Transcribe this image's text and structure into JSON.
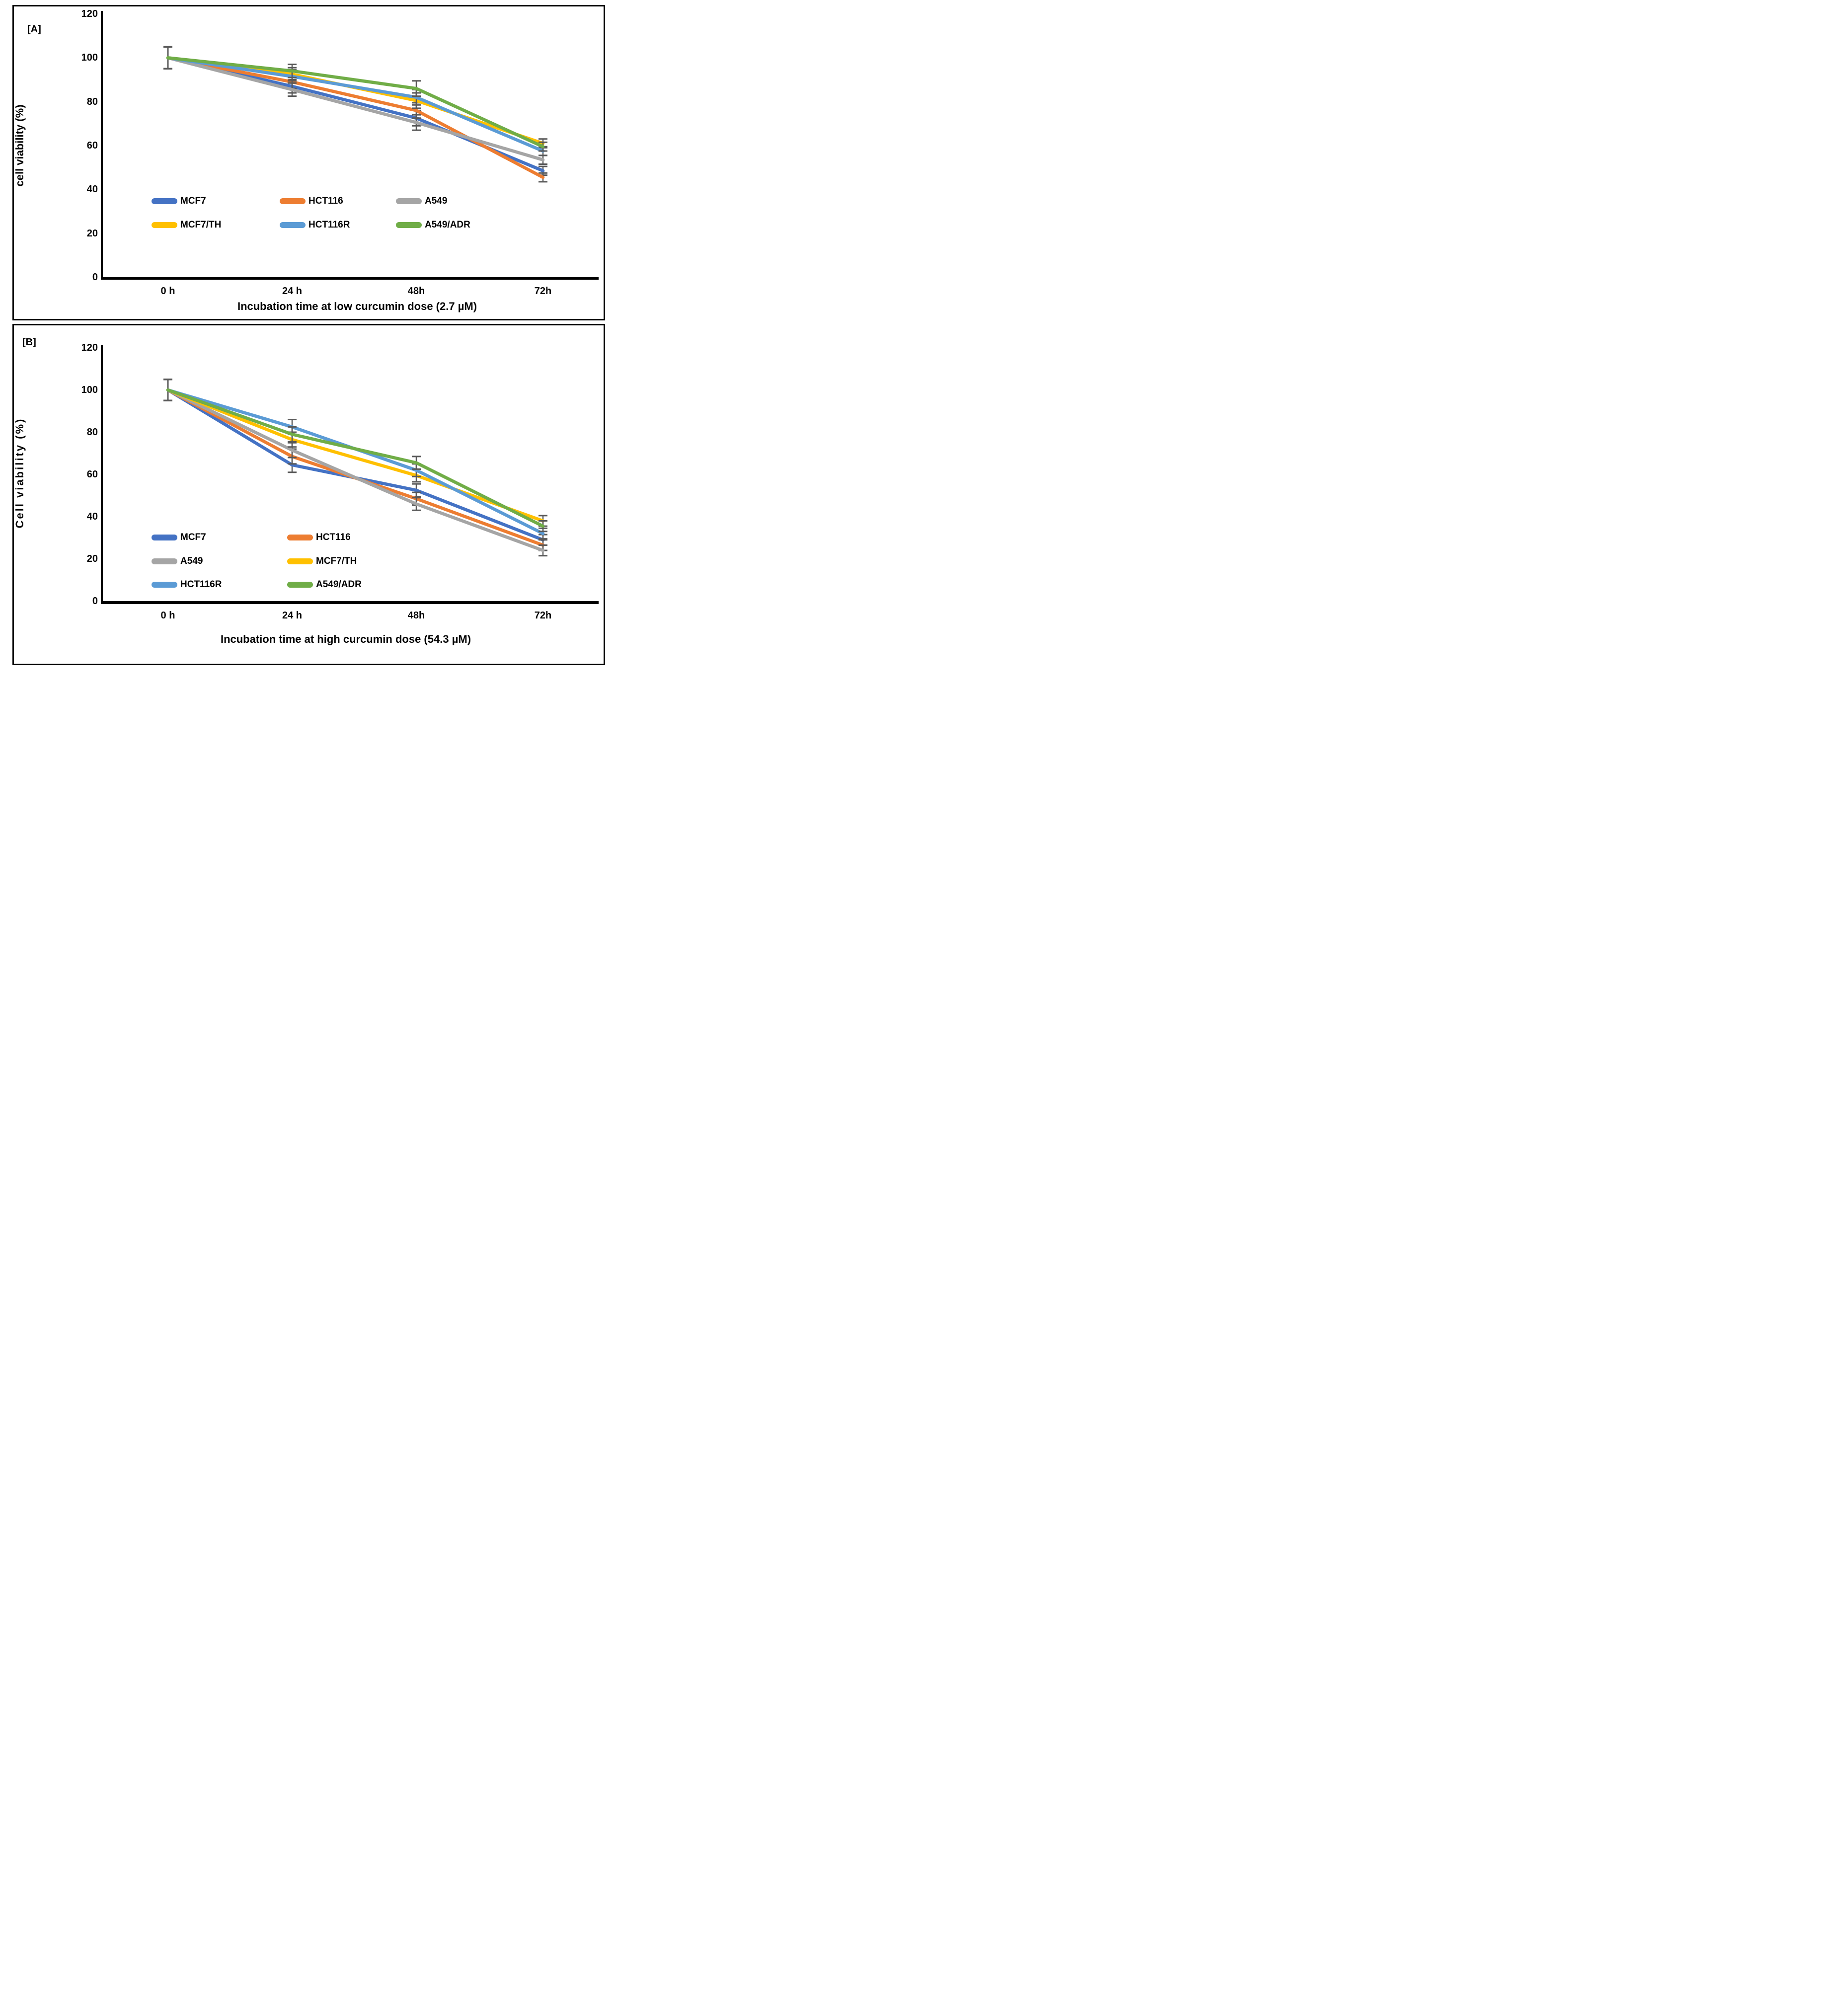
{
  "figure": {
    "panels": [
      {
        "panel_label": "[A]"
      },
      {
        "panel_label": "[B]"
      }
    ]
  },
  "chart_data": [
    {
      "type": "line",
      "panel_label": "[A]",
      "categories": [
        "0 h",
        "24 h",
        "48h",
        "72h"
      ],
      "xlabel": "Incubation time at low curcumin dose (2.7  µM)",
      "ylabel": "cell viability (%)",
      "ylim": [
        0,
        120
      ],
      "yticks": [
        0,
        20,
        40,
        60,
        80,
        100,
        120
      ],
      "grid": false,
      "legend_position": "inside-lower-center",
      "legend_columns": 3,
      "axis_color": "#000000",
      "error_color": "#595959",
      "errors": [
        5,
        3,
        3.5,
        2
      ],
      "series": [
        {
          "name": "MCF7",
          "color": "#4472C4",
          "values": [
            100,
            87,
            72.5,
            48.5
          ]
        },
        {
          "name": "HCT116",
          "color": "#ED7D31",
          "values": [
            100,
            89,
            76,
            45.5
          ]
        },
        {
          "name": "A549",
          "color": "#A5A5A5",
          "values": [
            100,
            85.5,
            70.5,
            53.5
          ]
        },
        {
          "name": "MCF7/TH",
          "color": "#FFC000",
          "values": [
            100,
            92.5,
            80.5,
            61
          ]
        },
        {
          "name": "HCT116R",
          "color": "#5B9BD5",
          "values": [
            100,
            91.5,
            82,
            57.5
          ]
        },
        {
          "name": "A549/ADR",
          "color": "#70AD47",
          "values": [
            100,
            94,
            86,
            59.5
          ]
        }
      ]
    },
    {
      "type": "line",
      "panel_label": "[B]",
      "categories": [
        "0 h",
        "24 h",
        "48h",
        "72h"
      ],
      "xlabel": "Incubation time at high curcumin dose (54.3  µM)",
      "ylabel": "Cell viability (%)",
      "ylim": [
        0,
        120
      ],
      "yticks": [
        0,
        20,
        40,
        60,
        80,
        100,
        120
      ],
      "grid": false,
      "legend_position": "inside-lower-left",
      "legend_columns": 2,
      "axis_color": "#000000",
      "error_color": "#595959",
      "errors": [
        5,
        3.5,
        3,
        2.5
      ],
      "series": [
        {
          "name": "MCF7",
          "color": "#4472C4",
          "values": [
            100,
            64.5,
            52.5,
            29
          ]
        },
        {
          "name": "HCT116",
          "color": "#ED7D31",
          "values": [
            100,
            68.5,
            48.5,
            26.5
          ]
        },
        {
          "name": "A549",
          "color": "#A5A5A5",
          "values": [
            100,
            71.5,
            46,
            24
          ]
        },
        {
          "name": "MCF7/TH",
          "color": "#FFC000",
          "values": [
            100,
            76.5,
            59.5,
            38
          ]
        },
        {
          "name": "HCT116R",
          "color": "#5B9BD5",
          "values": [
            100,
            82.5,
            62,
            32
          ]
        },
        {
          "name": "A549/ADR",
          "color": "#70AD47",
          "values": [
            100,
            79,
            65.5,
            35.5
          ]
        }
      ]
    }
  ]
}
